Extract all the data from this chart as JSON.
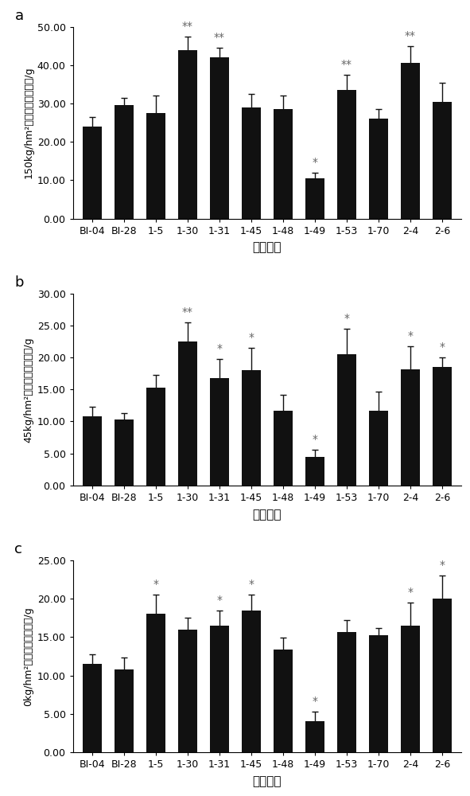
{
  "categories": [
    "BI-04",
    "BI-28",
    "1-5",
    "1-30",
    "1-31",
    "1-45",
    "1-48",
    "1-49",
    "1-53",
    "1-70",
    "2-4",
    "2-6"
  ],
  "panel_a": {
    "values": [
      24.0,
      29.5,
      27.5,
      44.0,
      42.0,
      29.0,
      28.5,
      10.5,
      33.5,
      26.0,
      40.5,
      30.5
    ],
    "errors": [
      2.5,
      2.0,
      4.5,
      3.5,
      2.5,
      3.5,
      3.5,
      1.5,
      4.0,
      2.5,
      4.5,
      5.0
    ],
    "sig": [
      "",
      "",
      "",
      "**",
      "**",
      "",
      "",
      "*",
      "**",
      "",
      "**",
      ""
    ],
    "ylabel": "150kg/hm²纯氮下的单株产量/g",
    "ylim": [
      0,
      50
    ],
    "yticks": [
      0.0,
      10.0,
      20.0,
      30.0,
      40.0,
      50.0
    ]
  },
  "panel_b": {
    "values": [
      10.8,
      10.3,
      15.3,
      22.5,
      16.8,
      18.0,
      11.7,
      4.4,
      20.5,
      11.7,
      18.2,
      18.5
    ],
    "errors": [
      1.5,
      1.0,
      2.0,
      3.0,
      3.0,
      3.5,
      2.5,
      1.2,
      4.0,
      3.0,
      3.5,
      1.5
    ],
    "sig": [
      "",
      "",
      "",
      "**",
      "*",
      "*",
      "",
      "*",
      "*",
      "",
      "*",
      "*"
    ],
    "ylabel": "45kg/hm²纯氮下的单株产量/g",
    "ylim": [
      0,
      30
    ],
    "yticks": [
      0.0,
      5.0,
      10.0,
      15.0,
      20.0,
      25.0,
      30.0
    ]
  },
  "panel_c": {
    "values": [
      11.5,
      10.8,
      18.0,
      16.0,
      16.5,
      18.5,
      13.4,
      4.0,
      15.7,
      15.2,
      16.5,
      20.0
    ],
    "errors": [
      1.3,
      1.5,
      2.5,
      1.5,
      2.0,
      2.0,
      1.5,
      1.3,
      1.5,
      1.0,
      3.0,
      3.0
    ],
    "sig": [
      "",
      "",
      "*",
      "",
      "*",
      "*",
      "",
      "*",
      "",
      "",
      "*",
      "*"
    ],
    "ylabel": "0kg/hm²纯氮下的单株产量/g",
    "ylim": [
      0,
      25
    ],
    "yticks": [
      0.0,
      5.0,
      10.0,
      15.0,
      20.0,
      25.0
    ]
  },
  "xlabel": "供试材料",
  "bar_color": "#111111",
  "ecolor": "#111111",
  "sig_fontsize": 10,
  "ylabel_fontsize": 9,
  "xlabel_fontsize": 11,
  "tick_fontsize": 9,
  "panel_label_fontsize": 13
}
